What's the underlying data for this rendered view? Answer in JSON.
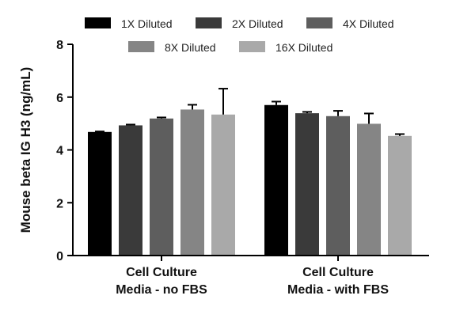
{
  "chart_data": {
    "type": "bar",
    "ylabel": "Mouse beta IG H3 (ng/mL)",
    "ylim": [
      0,
      8
    ],
    "yticks": [
      0,
      2,
      4,
      6,
      8
    ],
    "categories": [
      [
        "Cell Culture",
        "Media - no FBS"
      ],
      [
        "Cell Culture",
        "Media - with FBS"
      ]
    ],
    "legend_position": "top",
    "series": [
      {
        "name": "1X Diluted",
        "color": "#000000",
        "values": [
          4.68,
          5.7
        ],
        "errors": [
          0.02,
          0.13
        ]
      },
      {
        "name": "2X Diluted",
        "color": "#3a3a3a",
        "values": [
          4.93,
          5.39
        ],
        "errors": [
          0.03,
          0.05
        ]
      },
      {
        "name": "4X Diluted",
        "color": "#5e5e5e",
        "values": [
          5.19,
          5.28
        ],
        "errors": [
          0.04,
          0.2
        ]
      },
      {
        "name": "8X Diluted",
        "color": "#858585",
        "values": [
          5.53,
          4.99
        ],
        "errors": [
          0.18,
          0.39
        ]
      },
      {
        "name": "16X Diluted",
        "color": "#a9a9a9",
        "values": [
          5.34,
          4.53
        ],
        "errors": [
          0.98,
          0.07
        ]
      }
    ]
  }
}
